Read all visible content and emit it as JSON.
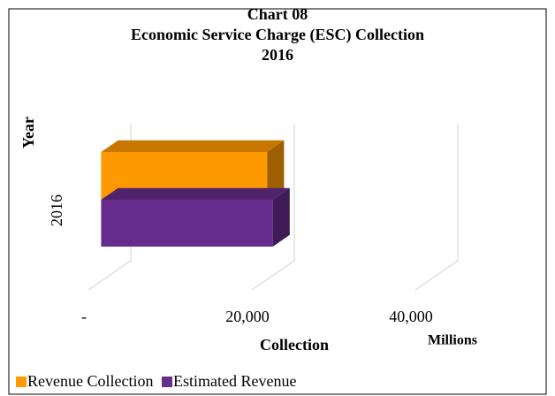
{
  "chart_data": {
    "type": "bar3d_horizontal",
    "title": [
      "Chart 08",
      "Economic Service Charge (ESC) Collection",
      "2016"
    ],
    "y_label": "Year",
    "x_label": "Collection",
    "x_unit": "Millions",
    "categories": [
      "2016"
    ],
    "series": [
      {
        "name": "Revenue Collection",
        "color": "#ff9900",
        "values": [
          20300
        ]
      },
      {
        "name": "Estimated Revenue",
        "color": "#662d8c",
        "values": [
          21000
        ]
      }
    ],
    "xlim": [
      0,
      40000
    ],
    "xticks": [
      {
        "value": 0,
        "label": "-"
      },
      {
        "value": 20000,
        "label": "20,000"
      },
      {
        "value": 40000,
        "label": "40,000"
      }
    ],
    "grid": true,
    "legend": "bottom-left"
  }
}
